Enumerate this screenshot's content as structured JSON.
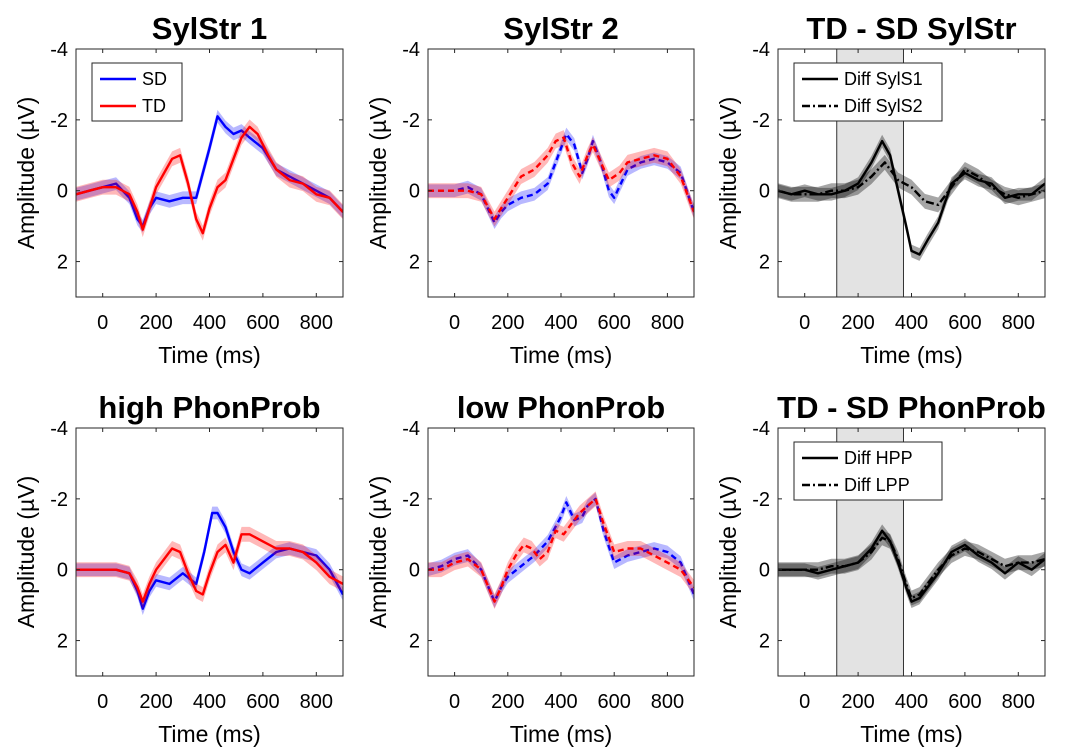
{
  "colors": {
    "SD": "#0000ff",
    "TD": "#ff0000",
    "Diff": "#000000",
    "window": "#e3e3e3"
  },
  "chart_data": [
    {
      "type": "line",
      "title": "SylStr 1",
      "xlabel": "Time (ms)",
      "ylabel": "Amplitude (µV)",
      "xlim": [
        -100,
        900
      ],
      "ylim": [
        -4,
        3
      ],
      "y_reversed": true,
      "xticks": [
        0,
        200,
        400,
        600,
        800
      ],
      "yticks": [
        -4,
        -2,
        0,
        2
      ],
      "legend": {
        "position": "top-left",
        "entries": [
          "SD",
          "TD"
        ]
      },
      "series": [
        {
          "name": "SD",
          "color": "#0000ff",
          "style": "solid",
          "x": [
            -100,
            -50,
            0,
            50,
            100,
            130,
            150,
            175,
            200,
            250,
            300,
            350,
            400,
            430,
            460,
            490,
            520,
            550,
            600,
            650,
            700,
            750,
            800,
            850,
            900
          ],
          "y": [
            0.1,
            0,
            -0.1,
            -0.2,
            0.2,
            0.8,
            1.0,
            0.5,
            0.2,
            0.3,
            0.2,
            0.2,
            -1.2,
            -2.1,
            -1.8,
            -1.6,
            -1.7,
            -1.5,
            -1.2,
            -0.6,
            -0.4,
            -0.2,
            0,
            0.2,
            0.6
          ]
        },
        {
          "name": "TD",
          "color": "#ff0000",
          "style": "solid",
          "x": [
            -100,
            -50,
            0,
            50,
            100,
            130,
            150,
            175,
            200,
            230,
            260,
            290,
            320,
            350,
            375,
            400,
            430,
            460,
            490,
            520,
            550,
            580,
            620,
            650,
            700,
            750,
            800,
            850,
            900
          ],
          "y": [
            0.1,
            0,
            -0.1,
            -0.1,
            0.1,
            0.6,
            1.1,
            0.5,
            -0.1,
            -0.5,
            -0.9,
            -1.0,
            -0.2,
            0.8,
            1.2,
            0.5,
            -0.1,
            -0.3,
            -0.9,
            -1.5,
            -1.8,
            -1.6,
            -1.0,
            -0.6,
            -0.3,
            -0.2,
            0.1,
            0.2,
            0.6
          ]
        }
      ]
    },
    {
      "type": "line",
      "title": "SylStr 2",
      "xlabel": "Time (ms)",
      "ylabel": "Amplitude (µV)",
      "xlim": [
        -100,
        900
      ],
      "ylim": [
        -4,
        3
      ],
      "y_reversed": true,
      "xticks": [
        0,
        200,
        400,
        600,
        800
      ],
      "yticks": [
        -4,
        -2,
        0,
        2
      ],
      "series": [
        {
          "name": "SD",
          "color": "#0000ff",
          "style": "dashed",
          "x": [
            -100,
            -50,
            0,
            50,
            100,
            150,
            175,
            200,
            250,
            300,
            350,
            400,
            420,
            450,
            480,
            500,
            520,
            550,
            580,
            600,
            650,
            700,
            750,
            800,
            850,
            900
          ],
          "y": [
            0,
            0,
            0,
            -0.1,
            0.1,
            0.9,
            0.6,
            0.4,
            0.2,
            0.1,
            -0.2,
            -1.2,
            -1.6,
            -1.3,
            -0.5,
            -0.9,
            -1.4,
            -0.8,
            0,
            0.2,
            -0.6,
            -0.8,
            -0.9,
            -0.8,
            -0.5,
            0.6
          ]
        },
        {
          "name": "TD",
          "color": "#ff0000",
          "style": "dashed",
          "x": [
            -100,
            -50,
            0,
            50,
            100,
            150,
            175,
            200,
            250,
            300,
            350,
            380,
            410,
            440,
            470,
            500,
            520,
            550,
            580,
            620,
            650,
            700,
            750,
            800,
            850,
            900
          ],
          "y": [
            0,
            0,
            0,
            0,
            0.1,
            0.8,
            0.5,
            0.2,
            -0.4,
            -0.6,
            -1.0,
            -1.4,
            -1.5,
            -0.8,
            -0.4,
            -1.0,
            -1.3,
            -0.8,
            -0.3,
            -0.5,
            -0.8,
            -0.9,
            -1.0,
            -0.9,
            -0.4,
            0.6
          ]
        }
      ]
    },
    {
      "type": "line",
      "title": "TD - SD SylStr",
      "xlabel": "Time (ms)",
      "ylabel": "Amplitude (µV)",
      "xlim": [
        -100,
        900
      ],
      "ylim": [
        -4,
        3
      ],
      "y_reversed": true,
      "xticks": [
        0,
        200,
        400,
        600,
        800
      ],
      "yticks": [
        -4,
        -2,
        0,
        2
      ],
      "window": [
        120,
        370
      ],
      "legend": {
        "position": "top-left",
        "entries": [
          "Diff SylS1",
          "Diff SylS2"
        ]
      },
      "series": [
        {
          "name": "Diff SylS1",
          "color": "#000000",
          "style": "solid",
          "x": [
            -100,
            -50,
            0,
            50,
            100,
            150,
            200,
            250,
            290,
            320,
            350,
            380,
            400,
            430,
            460,
            500,
            550,
            600,
            650,
            700,
            750,
            800,
            850,
            900
          ],
          "y": [
            0,
            0.1,
            0,
            0.1,
            0.1,
            0,
            -0.2,
            -0.8,
            -1.4,
            -1.0,
            0,
            1.0,
            1.7,
            1.8,
            1.4,
            0.9,
            -0.2,
            -0.5,
            -0.3,
            -0.2,
            0.2,
            0.1,
            0.1,
            -0.2
          ]
        },
        {
          "name": "Diff SylS2",
          "color": "#000000",
          "style": "dashdot",
          "x": [
            -100,
            -50,
            0,
            50,
            100,
            150,
            200,
            250,
            300,
            350,
            400,
            450,
            500,
            550,
            600,
            650,
            700,
            750,
            800,
            850,
            900
          ],
          "y": [
            0,
            0.1,
            0.1,
            0.1,
            0,
            0,
            -0.1,
            -0.4,
            -0.8,
            -0.3,
            -0.1,
            0.3,
            0.4,
            -0.1,
            -0.6,
            -0.4,
            -0.1,
            0.1,
            0.2,
            0.1,
            0
          ]
        }
      ]
    },
    {
      "type": "line",
      "title": "high PhonProb",
      "xlabel": "Time (ms)",
      "ylabel": "Amplitude (µV)",
      "xlim": [
        -100,
        900
      ],
      "ylim": [
        -4,
        3
      ],
      "y_reversed": true,
      "xticks": [
        0,
        200,
        400,
        600,
        800
      ],
      "yticks": [
        -4,
        -2,
        0,
        2
      ],
      "series": [
        {
          "name": "SD",
          "color": "#0000ff",
          "style": "solid",
          "x": [
            -100,
            -50,
            0,
            50,
            100,
            130,
            150,
            175,
            200,
            250,
            300,
            350,
            380,
            410,
            430,
            460,
            490,
            520,
            550,
            600,
            650,
            700,
            750,
            800,
            850,
            900
          ],
          "y": [
            0,
            0,
            0,
            0,
            0.1,
            0.6,
            1.1,
            0.6,
            0.3,
            0.4,
            0.1,
            0.4,
            -0.5,
            -1.6,
            -1.6,
            -1.2,
            -0.5,
            0,
            0.1,
            -0.2,
            -0.5,
            -0.6,
            -0.5,
            -0.4,
            0,
            0.7
          ]
        },
        {
          "name": "TD",
          "color": "#ff0000",
          "style": "solid",
          "x": [
            -100,
            -50,
            0,
            50,
            100,
            130,
            150,
            175,
            200,
            230,
            260,
            290,
            320,
            350,
            375,
            400,
            430,
            460,
            490,
            520,
            550,
            600,
            650,
            700,
            750,
            800,
            850,
            900
          ],
          "y": [
            0,
            0,
            0,
            0,
            0.1,
            0.5,
            0.9,
            0.4,
            0,
            -0.3,
            -0.6,
            -0.5,
            0.1,
            0.6,
            0.7,
            0.1,
            -0.5,
            -0.7,
            -0.2,
            -1.0,
            -1.0,
            -0.8,
            -0.6,
            -0.6,
            -0.5,
            -0.2,
            0.2,
            0.4
          ]
        }
      ]
    },
    {
      "type": "line",
      "title": "low PhonProb",
      "xlabel": "Time (ms)",
      "ylabel": "Amplitude (µV)",
      "xlim": [
        -100,
        900
      ],
      "ylim": [
        -4,
        3
      ],
      "y_reversed": true,
      "xticks": [
        0,
        200,
        400,
        600,
        800
      ],
      "yticks": [
        -4,
        -2,
        0,
        2
      ],
      "series": [
        {
          "name": "SD",
          "color": "#0000ff",
          "style": "dashed",
          "x": [
            -100,
            -50,
            0,
            50,
            100,
            150,
            175,
            200,
            250,
            300,
            350,
            400,
            420,
            450,
            480,
            500,
            530,
            560,
            600,
            650,
            700,
            750,
            800,
            850,
            900
          ],
          "y": [
            0,
            -0.1,
            -0.3,
            -0.4,
            0,
            0.9,
            0.5,
            0.2,
            -0.1,
            -0.4,
            -0.8,
            -1.5,
            -1.9,
            -1.4,
            -1.5,
            -1.8,
            -2.0,
            -1.1,
            -0.2,
            -0.4,
            -0.5,
            -0.6,
            -0.5,
            -0.2,
            0.7
          ]
        },
        {
          "name": "TD",
          "color": "#ff0000",
          "style": "dashed",
          "x": [
            -100,
            -50,
            0,
            50,
            100,
            150,
            175,
            200,
            230,
            260,
            290,
            320,
            350,
            380,
            410,
            440,
            470,
            500,
            530,
            560,
            600,
            650,
            700,
            750,
            800,
            850,
            900
          ],
          "y": [
            0,
            0,
            -0.2,
            -0.3,
            0,
            0.9,
            0.5,
            0,
            -0.4,
            -0.7,
            -0.6,
            -0.3,
            -0.5,
            -1.1,
            -1.0,
            -1.3,
            -1.6,
            -1.8,
            -2.0,
            -1.3,
            -0.5,
            -0.6,
            -0.6,
            -0.4,
            -0.2,
            0,
            0.5
          ]
        }
      ]
    },
    {
      "type": "line",
      "title": "TD - SD PhonProb",
      "xlabel": "Time (ms)",
      "ylabel": "Amplitude (µV)",
      "xlim": [
        -100,
        900
      ],
      "ylim": [
        -4,
        3
      ],
      "y_reversed": true,
      "xticks": [
        0,
        200,
        400,
        600,
        800
      ],
      "yticks": [
        -4,
        -2,
        0,
        2
      ],
      "window": [
        120,
        370
      ],
      "legend": {
        "position": "top-left",
        "entries": [
          "Diff HPP",
          "Diff LPP"
        ]
      },
      "series": [
        {
          "name": "Diff HPP",
          "color": "#000000",
          "style": "solid",
          "x": [
            -100,
            -50,
            0,
            50,
            100,
            150,
            200,
            250,
            290,
            320,
            350,
            380,
            400,
            430,
            460,
            500,
            550,
            600,
            650,
            700,
            750,
            800,
            850,
            900
          ],
          "y": [
            0,
            0,
            0,
            0.1,
            0,
            -0.1,
            -0.2,
            -0.6,
            -1.1,
            -0.8,
            -0.2,
            0.5,
            0.9,
            0.8,
            0.5,
            0.1,
            -0.5,
            -0.7,
            -0.4,
            -0.2,
            0.1,
            -0.2,
            0,
            -0.3
          ]
        },
        {
          "name": "Diff LPP",
          "color": "#000000",
          "style": "dashdot",
          "x": [
            -100,
            -50,
            0,
            50,
            100,
            150,
            200,
            250,
            290,
            320,
            350,
            380,
            400,
            430,
            460,
            500,
            550,
            600,
            650,
            700,
            750,
            800,
            850,
            900
          ],
          "y": [
            0,
            0,
            0,
            0,
            -0.1,
            -0.1,
            -0.2,
            -0.5,
            -0.9,
            -0.8,
            -0.3,
            0.4,
            0.8,
            0.7,
            0.4,
            0,
            -0.4,
            -0.6,
            -0.5,
            -0.3,
            -0.1,
            -0.2,
            -0.2,
            -0.3
          ]
        }
      ]
    }
  ]
}
